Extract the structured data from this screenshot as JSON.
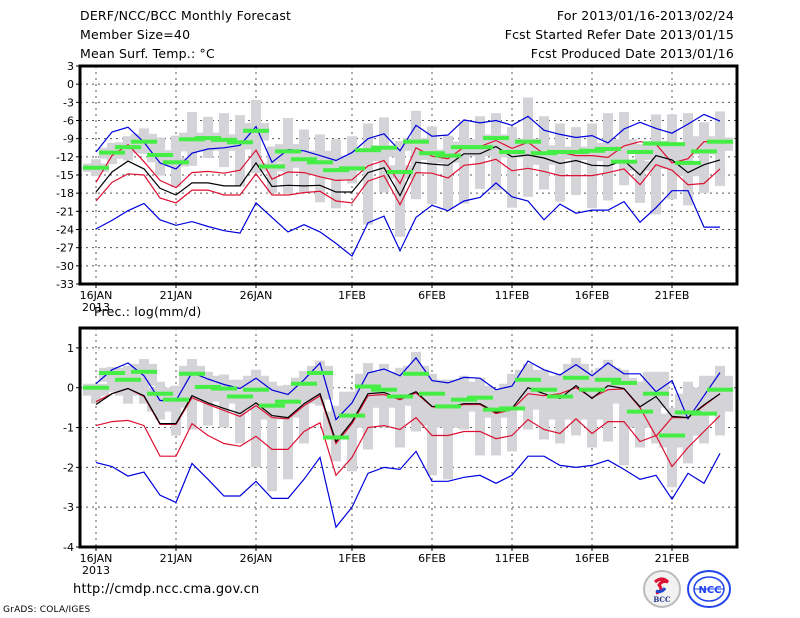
{
  "header": {
    "title": "DERF/NCC/BCC Monthly Forecast",
    "member_size": "Member Size=40",
    "variable_top": "Mean Surf. Temp.: °C",
    "period": "For 2013/01/16-2013/02/24",
    "started": "Fcst Started Refer Date 2013/01/15",
    "produced": "Fcst Produced Date 2013/01/16"
  },
  "footer": {
    "url": "http://cmdp.ncc.cma.gov.cn",
    "credit": "GrADS: COLA/IGES",
    "logo_left": "BCC",
    "logo_right": "NCC"
  },
  "colors": {
    "max_min": "#0000dd",
    "spread": "#dd1133",
    "mean": "#000000",
    "box": "#d3d3d8",
    "marker": "#44ee44",
    "grid": "#555555"
  },
  "chart_data": [
    {
      "type": "line",
      "title": "Mean Surf. Temp.: °C",
      "ylabel": "°C",
      "ylim": [
        -33,
        3
      ],
      "yticks": [
        3,
        0,
        -3,
        -6,
        -9,
        -12,
        -15,
        -18,
        -21,
        -24,
        -27,
        -30,
        -33
      ],
      "ytick_labels": [
        "3",
        "0",
        "-3",
        "-6",
        "-9",
        "-12",
        "-15",
        "-18",
        "-21",
        "-24",
        "-27",
        "-30",
        "-33"
      ],
      "x_start": "2013-01-16",
      "n_days": 40,
      "xtick_days": [
        0,
        5,
        10,
        16,
        21,
        26,
        31,
        36
      ],
      "xtick_labels": [
        "16JAN",
        "21JAN",
        "26JAN",
        "1FEB",
        "6FEB",
        "11FEB",
        "16FEB",
        "21FEB"
      ],
      "xtick_sublabel": "2013",
      "grid": true,
      "series": [
        {
          "name": "max",
          "color_key": "max_min",
          "values": [
            -11.2,
            -7.9,
            -7.1,
            -9.6,
            -13.0,
            -14.0,
            -11.4,
            -10.7,
            -10.5,
            -10.1,
            -7.0,
            -12.9,
            -10.8,
            -11.0,
            -11.8,
            -12.6,
            -11.3,
            -9.0,
            -8.2,
            -11.0,
            -6.8,
            -8.6,
            -8.4,
            -5.9,
            -6.4,
            -6.0,
            -6.8,
            -5.3,
            -7.6,
            -8.3,
            -8.8,
            -8.5,
            -9.7,
            -7.4,
            -6.3,
            -7.3,
            -8.1,
            -6.6,
            -5.0,
            -6.1
          ]
        },
        {
          "name": "upper",
          "color_key": "spread",
          "values": [
            -16.2,
            -11.8,
            -10.0,
            -12.8,
            -15.9,
            -17.1,
            -14.6,
            -14.4,
            -14.7,
            -14.2,
            -10.9,
            -15.7,
            -14.5,
            -14.6,
            -15.3,
            -15.9,
            -15.8,
            -13.5,
            -12.6,
            -16.4,
            -10.5,
            -11.9,
            -12.3,
            -10.4,
            -10.3,
            -9.3,
            -10.6,
            -9.6,
            -11.5,
            -11.2,
            -11.8,
            -11.8,
            -12.1,
            -10.2,
            -9.5,
            -9.9,
            -13.0,
            -12.3,
            -9.5,
            -9.5
          ]
        },
        {
          "name": "mean",
          "color_key": "mean",
          "values": [
            -17.8,
            -14.5,
            -12.7,
            -14.0,
            -17.2,
            -18.3,
            -16.3,
            -16.3,
            -16.8,
            -16.8,
            -13.0,
            -16.9,
            -16.7,
            -16.8,
            -16.7,
            -17.8,
            -17.8,
            -14.6,
            -13.8,
            -18.4,
            -12.9,
            -13.2,
            -13.4,
            -11.5,
            -11.5,
            -10.3,
            -12.0,
            -11.7,
            -12.2,
            -13.1,
            -12.6,
            -13.4,
            -13.5,
            -12.6,
            -15.0,
            -11.8,
            -12.5,
            -14.6,
            -13.3,
            -12.5
          ]
        },
        {
          "name": "lower",
          "color_key": "spread",
          "values": [
            -19.3,
            -16.2,
            -14.8,
            -15.0,
            -18.8,
            -19.6,
            -17.5,
            -17.5,
            -18.3,
            -18.3,
            -14.8,
            -18.3,
            -18.3,
            -17.9,
            -17.7,
            -19.3,
            -19.6,
            -16.0,
            -15.1,
            -19.9,
            -14.6,
            -14.7,
            -15.5,
            -13.4,
            -13.1,
            -12.4,
            -14.3,
            -13.9,
            -14.4,
            -15.1,
            -15.1,
            -15.1,
            -14.6,
            -14.0,
            -16.6,
            -13.3,
            -14.2,
            -16.6,
            -16.4,
            -14.0
          ]
        },
        {
          "name": "min",
          "color_key": "max_min",
          "values": [
            -23.9,
            -22.5,
            -20.9,
            -19.7,
            -22.4,
            -23.3,
            -22.7,
            -23.5,
            -24.2,
            -24.6,
            -19.6,
            -22.0,
            -24.4,
            -23.2,
            -24.4,
            -26.3,
            -28.4,
            -22.9,
            -21.8,
            -27.5,
            -22.0,
            -20.0,
            -20.9,
            -19.3,
            -18.7,
            -16.3,
            -18.6,
            -19.3,
            -22.4,
            -19.8,
            -21.3,
            -20.8,
            -20.8,
            -19.4,
            -22.8,
            -20.4,
            -17.6,
            -17.6,
            -23.6,
            -23.6
          ]
        }
      ],
      "boxes": {
        "whisker_low": [
          -15.2,
          -13.2,
          -12.6,
          -11.5,
          -15.1,
          -17.0,
          -13.5,
          -12.2,
          -13.7,
          -16.9,
          -14.7,
          -18.0,
          -18.1,
          -18.0,
          -19.5,
          -20.5,
          -16.4,
          -23.2,
          -17.9,
          -25.2,
          -19.0,
          -19.8,
          -20.6,
          -19.7,
          -17.3,
          -17.5,
          -20.4,
          -18.6,
          -17.4,
          -19.4,
          -18.3,
          -20.5,
          -19.2,
          -16.7,
          -19.6,
          -21.5,
          -19.0,
          -20.0,
          -18.0,
          -16.8
        ],
        "box_low": [
          -14.5,
          -12.3,
          -11.4,
          -11.0,
          -12.9,
          -13.6,
          -11.1,
          -10.3,
          -11.0,
          -10.8,
          -9.3,
          -14.4,
          -12.9,
          -13.8,
          -15.0,
          -15.7,
          -14.4,
          -12.7,
          -12.0,
          -15.6,
          -11.0,
          -12.5,
          -13.0,
          -11.4,
          -11.9,
          -11.1,
          -12.1,
          -11.5,
          -13.3,
          -12.2,
          -12.4,
          -12.5,
          -12.7,
          -11.5,
          -14.3,
          -12.5,
          -14.0,
          -15.2,
          -11.6,
          -11.0
        ],
        "box_high": [
          -13.1,
          -10.5,
          -9.6,
          -8.2,
          -10.9,
          -12.2,
          -8.0,
          -8.0,
          -8.3,
          -8.3,
          -6.4,
          -13.0,
          -9.9,
          -11.0,
          -11.0,
          -12.6,
          -11.8,
          -10.8,
          -10.1,
          -13.4,
          -8.9,
          -10.8,
          -11.3,
          -9.5,
          -9.1,
          -8.3,
          -10.0,
          -9.0,
          -10.1,
          -11.0,
          -10.3,
          -10.8,
          -9.7,
          -9.1,
          -12.7,
          -9.4,
          -10.1,
          -12.9,
          -8.6,
          -8.8
        ],
        "whisker_high": [
          -12.4,
          -9.7,
          -8.6,
          -7.3,
          -8.8,
          -8.5,
          -4.6,
          -5.4,
          -4.8,
          -5.1,
          -2.6,
          -10.3,
          -5.6,
          -7.5,
          -8.3,
          -9.1,
          -8.6,
          -6.5,
          -5.5,
          -9.4,
          -4.4,
          -7.0,
          -8.5,
          -6.1,
          -5.3,
          -4.8,
          -7.1,
          -2.2,
          -5.3,
          -6.5,
          -7.1,
          -6.5,
          -4.8,
          -4.6,
          -9.9,
          -5.0,
          -5.0,
          -4.8,
          -6.3,
          -4.5
        ],
        "marker": [
          -13.8,
          -11.3,
          -10.4,
          -9.5,
          -11.7,
          -12.9,
          -9.1,
          -8.9,
          -9.2,
          -9.6,
          -7.7,
          -13.6,
          -11.1,
          -12.4,
          -12.9,
          -14.2,
          -13.9,
          -10.9,
          -10.5,
          -14.5,
          -9.5,
          -11.4,
          -11.8,
          -10.4,
          -10.4,
          -8.9,
          -11.2,
          -9.5,
          -11.4,
          -11.2,
          -11.2,
          -11.0,
          -10.7,
          -12.8,
          -11.2,
          -9.8,
          -9.9,
          -13.0,
          -11.1,
          -9.5
        ]
      }
    },
    {
      "type": "line",
      "title": "Prec.: log(mm/d)",
      "ylabel": "log(mm/d)",
      "ylim": [
        -4,
        1.5
      ],
      "yticks": [
        1,
        0,
        -1,
        -2,
        -3,
        -4
      ],
      "ytick_labels": [
        "1",
        "0",
        "-1",
        "-2",
        "-3",
        "-4"
      ],
      "x_start": "2013-01-16",
      "n_days": 40,
      "xtick_days": [
        0,
        5,
        10,
        16,
        21,
        26,
        31,
        36
      ],
      "xtick_labels": [
        "16JAN",
        "21JAN",
        "26JAN",
        "1FEB",
        "6FEB",
        "11FEB",
        "16FEB",
        "21FEB"
      ],
      "xtick_sublabel": "2013",
      "grid": true,
      "series": [
        {
          "name": "max",
          "color_key": "max_min",
          "values": [
            0.1,
            0.45,
            0.62,
            0.3,
            -0.32,
            -0.32,
            0.38,
            0.22,
            0.08,
            -0.02,
            0.24,
            -0.06,
            -0.17,
            0.2,
            0.62,
            -0.8,
            -0.38,
            0.37,
            0.47,
            0.3,
            0.75,
            0.18,
            0.12,
            0.26,
            0.24,
            -0.05,
            0.04,
            0.67,
            0.45,
            0.32,
            0.58,
            0.3,
            0.62,
            0.35,
            0.35,
            -0.1,
            0.18,
            -0.78,
            -0.2,
            0.38
          ]
        },
        {
          "name": "upper",
          "color_key": "spread",
          "values": [
            -0.35,
            -0.15,
            -0.02,
            -0.22,
            -0.92,
            -0.92,
            -0.25,
            -0.42,
            -0.57,
            -0.72,
            -0.45,
            -0.75,
            -0.78,
            -0.45,
            -0.2,
            -1.4,
            -0.9,
            -0.2,
            -0.17,
            -0.3,
            -0.13,
            -0.48,
            -0.5,
            -0.42,
            -0.42,
            -0.65,
            -0.55,
            -0.15,
            -0.2,
            -0.15,
            0.0,
            -0.25,
            -0.05,
            -0.03,
            -0.5,
            -1.22,
            -0.75,
            -0.75,
            -0.45,
            -0.15
          ]
        },
        {
          "name": "mean",
          "color_key": "mean",
          "values": [
            -0.42,
            -0.15,
            -0.02,
            -0.2,
            -0.9,
            -0.9,
            -0.2,
            -0.38,
            -0.52,
            -0.65,
            -0.38,
            -0.7,
            -0.75,
            -0.4,
            -0.15,
            -1.35,
            -0.85,
            -0.15,
            -0.12,
            -0.27,
            -0.1,
            -0.47,
            -0.48,
            -0.4,
            -0.4,
            -0.62,
            -0.52,
            0.0,
            -0.15,
            -0.27,
            0.05,
            -0.27,
            0.05,
            -0.02,
            -0.48,
            -0.22,
            -0.72,
            -0.75,
            -0.43,
            -0.15
          ]
        },
        {
          "name": "lower",
          "color_key": "spread",
          "values": [
            -0.95,
            -0.85,
            -0.82,
            -0.95,
            -1.72,
            -1.72,
            -0.9,
            -1.2,
            -1.4,
            -1.47,
            -1.22,
            -1.55,
            -1.55,
            -1.1,
            -0.88,
            -2.2,
            -1.75,
            -1.0,
            -0.95,
            -1.05,
            -0.75,
            -1.2,
            -1.2,
            -1.1,
            -1.1,
            -1.28,
            -1.2,
            -0.8,
            -1.05,
            -1.15,
            -0.78,
            -1.15,
            -0.85,
            -0.85,
            -1.35,
            -1.2,
            -1.98,
            -1.5,
            -1.1,
            -0.7
          ]
        },
        {
          "name": "min",
          "color_key": "max_min",
          "values": [
            -1.88,
            -1.98,
            -2.22,
            -2.12,
            -2.7,
            -2.88,
            -1.9,
            -2.3,
            -2.72,
            -2.72,
            -2.35,
            -2.78,
            -2.78,
            -2.3,
            -1.75,
            -3.5,
            -3.0,
            -2.15,
            -2.0,
            -2.05,
            -1.6,
            -2.35,
            -2.35,
            -2.25,
            -2.2,
            -2.4,
            -2.2,
            -1.72,
            -1.72,
            -1.95,
            -2.0,
            -1.95,
            -1.82,
            -2.05,
            -2.3,
            -2.2,
            -2.8,
            -2.15,
            -2.4,
            -1.65
          ]
        }
      ],
      "boxes": {
        "whisker_low": [
          -0.4,
          -0.1,
          -0.4,
          -0.4,
          -0.8,
          -1.2,
          -1.05,
          -0.95,
          -1.0,
          -1.4,
          -2.0,
          -2.6,
          -2.3,
          -1.4,
          -0.45,
          -1.85,
          -2.1,
          -1.55,
          -1.0,
          -1.5,
          -1.1,
          -2.2,
          -2.3,
          -1.05,
          -1.7,
          -1.7,
          -1.6,
          -1.05,
          -1.3,
          -1.4,
          -1.2,
          -1.5,
          -1.35,
          -1.95,
          -1.5,
          -1.4,
          -2.5,
          -1.9,
          -1.4,
          -1.2
        ],
        "box_low": [
          -0.2,
          0.15,
          -0.2,
          0.05,
          -0.6,
          -0.5,
          -0.3,
          -0.35,
          -0.2,
          -0.4,
          -0.55,
          -0.8,
          -0.75,
          -0.4,
          -0.3,
          -1.3,
          -1.0,
          -0.5,
          -0.5,
          -0.45,
          -0.45,
          -0.95,
          -1.0,
          -0.5,
          -0.6,
          -0.75,
          -0.55,
          -0.45,
          -0.55,
          -0.8,
          -0.45,
          -0.8,
          -0.2,
          -0.4,
          -1.0,
          -0.5,
          -1.5,
          -1.2,
          -0.6,
          -0.6
        ],
        "box_high": [
          0.1,
          0.5,
          0.45,
          0.6,
          0.0,
          -0.1,
          0.55,
          0.3,
          0.2,
          0.05,
          0.3,
          0.0,
          0.05,
          0.25,
          0.55,
          -0.6,
          -0.1,
          0.35,
          0.4,
          0.2,
          0.55,
          0.1,
          0.2,
          0.15,
          0.05,
          -0.15,
          0.1,
          0.45,
          0.3,
          0.2,
          0.6,
          0.25,
          0.5,
          0.25,
          0.0,
          0.4,
          -0.65,
          -0.15,
          0.0,
          0.3
        ],
        "whisker_high": [
          0.1,
          0.52,
          0.55,
          0.72,
          0.15,
          0.05,
          0.72,
          0.4,
          0.33,
          0.2,
          0.45,
          0.15,
          0.07,
          0.42,
          0.68,
          -0.45,
          -0.1,
          0.62,
          0.6,
          0.5,
          0.9,
          0.35,
          0.2,
          0.3,
          0.25,
          -0.05,
          0.35,
          0.6,
          0.45,
          0.35,
          0.75,
          0.4,
          0.7,
          0.45,
          0.15,
          0.2,
          -0.5,
          0.15,
          0.3,
          0.55
        ],
        "marker": [
          0.0,
          0.37,
          0.2,
          0.4,
          -0.15,
          -0.3,
          0.35,
          0.02,
          -0.02,
          -0.22,
          -0.05,
          -0.45,
          -0.35,
          0.1,
          0.37,
          -1.25,
          -0.7,
          0.03,
          -0.05,
          -0.22,
          0.35,
          -0.15,
          -0.47,
          -0.3,
          -0.25,
          -0.55,
          -0.52,
          0.2,
          -0.05,
          -0.22,
          0.25,
          -0.05,
          0.2,
          0.12,
          -0.6,
          -0.15,
          -1.2,
          -0.62,
          -0.65,
          -0.05
        ]
      }
    }
  ]
}
